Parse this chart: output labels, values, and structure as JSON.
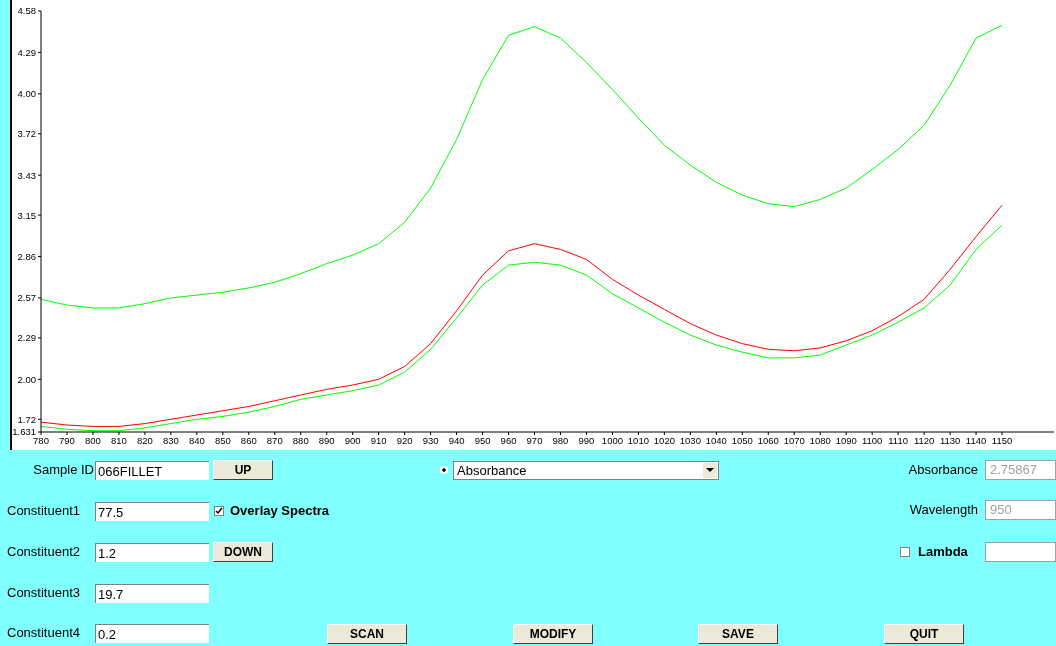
{
  "chart_data": {
    "type": "line",
    "x": [
      780,
      790,
      800,
      810,
      820,
      830,
      840,
      850,
      860,
      870,
      880,
      890,
      900,
      910,
      920,
      930,
      940,
      950,
      960,
      970,
      980,
      990,
      1000,
      1010,
      1020,
      1030,
      1040,
      1050,
      1060,
      1070,
      1080,
      1090,
      1100,
      1110,
      1120,
      1130,
      1140,
      1150
    ],
    "series": [
      {
        "color": "#00ff00",
        "values": [
          2.56,
          2.52,
          2.5,
          2.5,
          2.53,
          2.57,
          2.59,
          2.61,
          2.64,
          2.68,
          2.74,
          2.81,
          2.87,
          2.95,
          3.1,
          3.34,
          3.68,
          4.1,
          4.41,
          4.47,
          4.39,
          4.22,
          4.03,
          3.83,
          3.64,
          3.5,
          3.38,
          3.29,
          3.23,
          3.21,
          3.26,
          3.34,
          3.47,
          3.61,
          3.78,
          4.06,
          4.39,
          4.48
        ]
      },
      {
        "color": "#00ff00",
        "values": [
          1.67,
          1.65,
          1.64,
          1.64,
          1.66,
          1.69,
          1.72,
          1.74,
          1.77,
          1.81,
          1.86,
          1.89,
          1.92,
          1.96,
          2.05,
          2.21,
          2.43,
          2.66,
          2.8,
          2.82,
          2.8,
          2.73,
          2.6,
          2.5,
          2.4,
          2.31,
          2.24,
          2.19,
          2.15,
          2.15,
          2.17,
          2.24,
          2.31,
          2.4,
          2.5,
          2.66,
          2.91,
          3.08
        ]
      },
      {
        "color": "#ff0000",
        "values": [
          1.7,
          1.68,
          1.67,
          1.67,
          1.69,
          1.72,
          1.75,
          1.78,
          1.81,
          1.85,
          1.89,
          1.93,
          1.96,
          2.0,
          2.09,
          2.25,
          2.48,
          2.73,
          2.9,
          2.95,
          2.91,
          2.84,
          2.7,
          2.59,
          2.49,
          2.39,
          2.31,
          2.25,
          2.21,
          2.2,
          2.22,
          2.27,
          2.34,
          2.44,
          2.56,
          2.77,
          3.0,
          3.22
        ]
      }
    ],
    "xlim": [
      780,
      1170
    ],
    "ylim": [
      1.631,
      4.58
    ],
    "xticks": [
      780,
      790,
      800,
      810,
      820,
      830,
      840,
      850,
      860,
      870,
      880,
      890,
      900,
      910,
      920,
      930,
      940,
      950,
      960,
      970,
      980,
      990,
      1000,
      1010,
      1020,
      1030,
      1040,
      1050,
      1060,
      1070,
      1080,
      1090,
      1100,
      1110,
      1120,
      1130,
      1140,
      1150
    ],
    "yticks": [
      1.631,
      1.72,
      {
        "value": 2,
        "label": "2.00"
      },
      2.29,
      2.57,
      2.86,
      3.15,
      3.43,
      3.72,
      {
        "value": 4,
        "label": "4.00"
      },
      4.29,
      4.58
    ],
    "marker": "none",
    "line_style": "solid",
    "grid": false,
    "legend": false,
    "annotations": [
      "Sample ID",
      "066FILLET",
      "UP",
      "Absorbance",
      "Absorbance",
      "2.75867",
      "Constituent1",
      "77.5",
      "Overlay Spectra",
      "Wavelength",
      "950",
      "Constituent2",
      "1.2",
      "DOWN",
      "Lambda",
      "Constituent3",
      "19.7",
      "Constituent4",
      "0.2",
      "SCAN",
      "MODIFY",
      "SAVE",
      "QUIT"
    ]
  }
}
